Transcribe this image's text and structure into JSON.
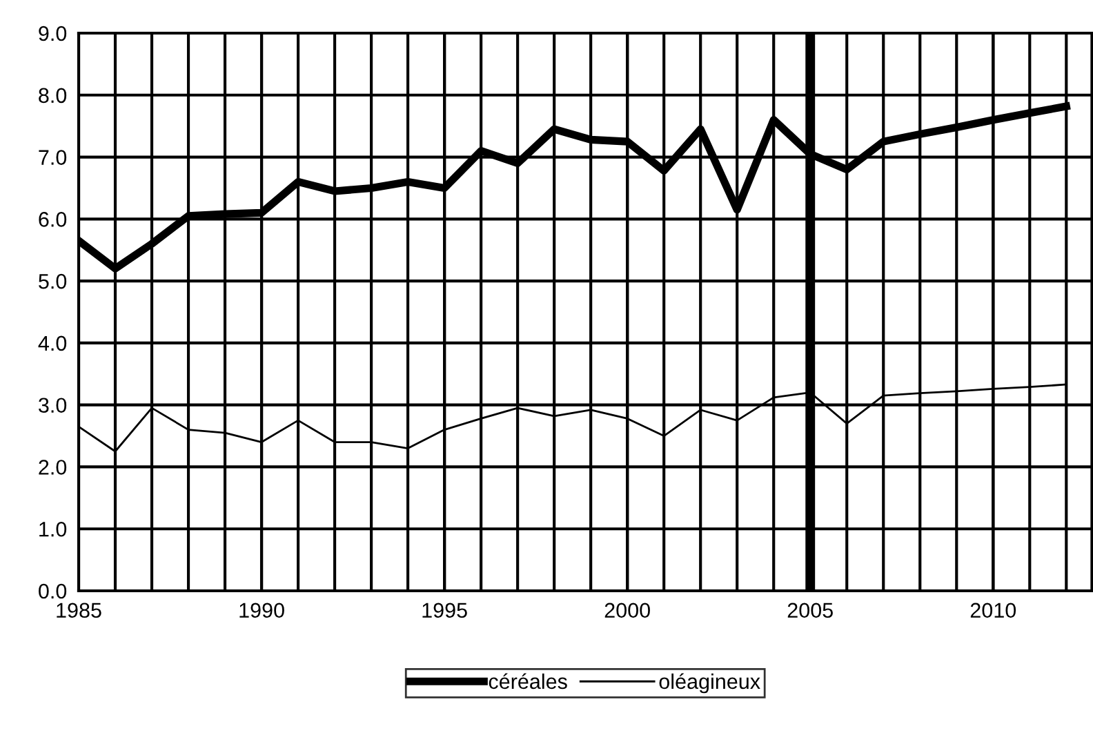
{
  "chart_data": {
    "type": "line",
    "x": [
      1985,
      1986,
      1987,
      1988,
      1989,
      1990,
      1991,
      1992,
      1993,
      1994,
      1995,
      1996,
      1997,
      1998,
      1999,
      2000,
      2001,
      2002,
      2003,
      2004,
      2005,
      2006,
      2007,
      2008,
      2009,
      2010,
      2011,
      2012
    ],
    "series": [
      {
        "name": "céréales",
        "color": "#000000",
        "values": [
          5.65,
          5.2,
          5.6,
          6.05,
          6.08,
          6.1,
          6.6,
          6.45,
          6.5,
          6.6,
          6.5,
          7.1,
          6.9,
          7.45,
          7.28,
          7.25,
          6.78,
          7.45,
          6.15,
          7.6,
          7.05,
          6.8,
          7.25,
          7.37,
          7.48,
          7.6,
          7.71,
          7.82
        ]
      },
      {
        "name": "oléagineux",
        "color": "#000000",
        "values": [
          2.65,
          2.25,
          2.95,
          2.6,
          2.55,
          2.4,
          2.75,
          2.4,
          2.4,
          2.3,
          2.6,
          2.78,
          2.95,
          2.82,
          2.92,
          2.78,
          2.5,
          2.92,
          2.75,
          3.12,
          3.2,
          2.7,
          3.15,
          3.19,
          3.22,
          3.26,
          3.29,
          3.33
        ]
      }
    ],
    "xlim": [
      1985,
      2012.7
    ],
    "xticks": [
      1985,
      1990,
      1995,
      2000,
      2005,
      2010
    ],
    "ylim": [
      0,
      9
    ],
    "yticks": [
      {
        "value": 0,
        "label": "0.0"
      },
      {
        "value": 1,
        "label": "1.0"
      },
      {
        "value": 2,
        "label": "2.0"
      },
      {
        "value": 3,
        "label": "3.0"
      },
      {
        "value": 4,
        "label": "4.0"
      },
      {
        "value": 5,
        "label": "5.0"
      },
      {
        "value": 6,
        "label": "6.0"
      },
      {
        "value": 7,
        "label": "7.0"
      },
      {
        "value": 8,
        "label": "8.0"
      },
      {
        "value": 9,
        "label": "9.0"
      }
    ],
    "ref_lines": [
      {
        "axis": "x",
        "value": 2005,
        "color": "#000000"
      }
    ],
    "grid": true,
    "legend": "bottom",
    "marker": "none",
    "line_style": "solid"
  }
}
